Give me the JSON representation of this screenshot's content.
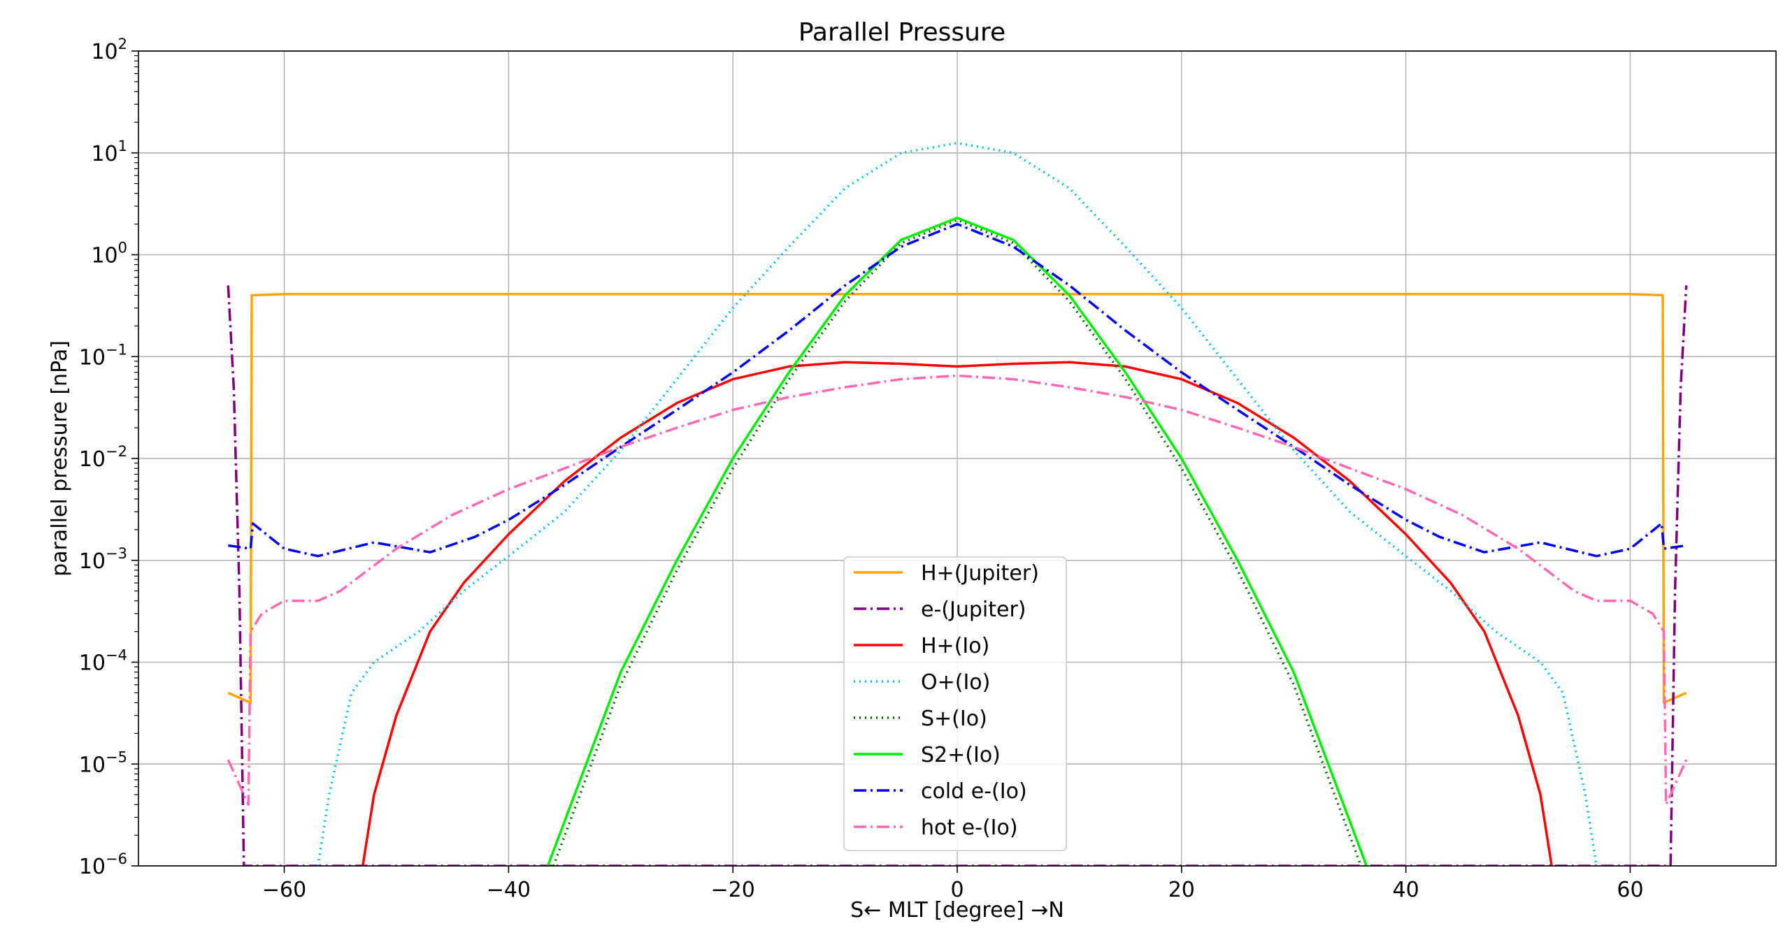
{
  "chart_data": {
    "type": "line",
    "title": "Parallel Pressure",
    "xlabel": "S← MLT [degree] →N",
    "ylabel": "parallel pressure [nPa]",
    "xlim": [
      -73,
      73
    ],
    "ylim": [
      1e-06,
      100
    ],
    "yscale": "log",
    "grid": true,
    "legend_position": "lower center",
    "x_ticks": [
      -60,
      -40,
      -20,
      0,
      20,
      40,
      60
    ],
    "x_tick_labels": [
      "−60",
      "−40",
      "−20",
      "0",
      "20",
      "40",
      "60"
    ],
    "y_ticks": [
      {
        "value": 1e-06,
        "base": "10",
        "exp": "−6"
      },
      {
        "value": 1e-05,
        "base": "10",
        "exp": "−5"
      },
      {
        "value": 0.0001,
        "base": "10",
        "exp": "−4"
      },
      {
        "value": 0.001,
        "base": "10",
        "exp": "−3"
      },
      {
        "value": 0.01,
        "base": "10",
        "exp": "−2"
      },
      {
        "value": 0.1,
        "base": "10",
        "exp": "−1"
      },
      {
        "value": 1,
        "base": "10",
        "exp": "0"
      },
      {
        "value": 10,
        "base": "10",
        "exp": "1"
      },
      {
        "value": 100,
        "base": "10",
        "exp": "2"
      }
    ],
    "series": [
      {
        "name": "H+(Jupiter)",
        "color": "#FFA500",
        "dash": "solid",
        "points": [
          [
            -65,
            5e-05
          ],
          [
            -63,
            4e-05
          ],
          [
            -62.9,
            0.4
          ],
          [
            -60,
            0.41
          ],
          [
            -40,
            0.41
          ],
          [
            0,
            0.41
          ],
          [
            40,
            0.41
          ],
          [
            60,
            0.41
          ],
          [
            62.9,
            0.4
          ],
          [
            63,
            4e-05
          ],
          [
            65,
            5e-05
          ]
        ]
      },
      {
        "name": "e-(Jupiter)",
        "color": "#800080",
        "dash": "dashdot",
        "points": [
          [
            -65,
            0.5
          ],
          [
            -64.5,
            0.05
          ],
          [
            -64,
            0.0005
          ],
          [
            -63.6,
            1e-06
          ],
          [
            63.6,
            1e-06
          ],
          [
            64,
            0.0005
          ],
          [
            64.5,
            0.05
          ],
          [
            65,
            0.5
          ]
        ]
      },
      {
        "name": "H+(Io)",
        "color": "#FF0000",
        "dash": "solid",
        "points": [
          [
            -53,
            1e-06
          ],
          [
            -52,
            5e-06
          ],
          [
            -50,
            3e-05
          ],
          [
            -47,
            0.0002
          ],
          [
            -44,
            0.0006
          ],
          [
            -40,
            0.0018
          ],
          [
            -35,
            0.006
          ],
          [
            -30,
            0.016
          ],
          [
            -25,
            0.035
          ],
          [
            -20,
            0.06
          ],
          [
            -15,
            0.08
          ],
          [
            -10,
            0.088
          ],
          [
            -5,
            0.085
          ],
          [
            0,
            0.08
          ],
          [
            5,
            0.085
          ],
          [
            10,
            0.088
          ],
          [
            15,
            0.08
          ],
          [
            20,
            0.06
          ],
          [
            25,
            0.035
          ],
          [
            30,
            0.016
          ],
          [
            35,
            0.006
          ],
          [
            40,
            0.0018
          ],
          [
            44,
            0.0006
          ],
          [
            47,
            0.0002
          ],
          [
            50,
            3e-05
          ],
          [
            52,
            5e-06
          ],
          [
            53,
            1e-06
          ]
        ]
      },
      {
        "name": "O+(Io)",
        "color": "#00BFEF",
        "dash": "dotted",
        "points": [
          [
            -57,
            1e-06
          ],
          [
            -56,
            5e-06
          ],
          [
            -54,
            5e-05
          ],
          [
            -52,
            0.0001
          ],
          [
            -48,
            0.0002
          ],
          [
            -44,
            0.0005
          ],
          [
            -40,
            0.0011
          ],
          [
            -35,
            0.003
          ],
          [
            -30,
            0.012
          ],
          [
            -25,
            0.06
          ],
          [
            -20,
            0.3
          ],
          [
            -15,
            1.2
          ],
          [
            -10,
            4.5
          ],
          [
            -5,
            10
          ],
          [
            0,
            12.5
          ],
          [
            5,
            10
          ],
          [
            10,
            4.5
          ],
          [
            15,
            1.2
          ],
          [
            20,
            0.3
          ],
          [
            25,
            0.06
          ],
          [
            30,
            0.012
          ],
          [
            35,
            0.003
          ],
          [
            40,
            0.0011
          ],
          [
            44,
            0.0005
          ],
          [
            48,
            0.0002
          ],
          [
            52,
            0.0001
          ],
          [
            54,
            5e-05
          ],
          [
            56,
            5e-06
          ],
          [
            57,
            1e-06
          ]
        ]
      },
      {
        "name": "S+(Io)",
        "color": "#006400",
        "dash": "dotted",
        "points": [
          [
            -36,
            1e-06
          ],
          [
            -30,
            6e-05
          ],
          [
            -25,
            0.0008
          ],
          [
            -20,
            0.008
          ],
          [
            -15,
            0.06
          ],
          [
            -10,
            0.35
          ],
          [
            -5,
            1.3
          ],
          [
            0,
            2.2
          ],
          [
            5,
            1.3
          ],
          [
            10,
            0.35
          ],
          [
            15,
            0.06
          ],
          [
            20,
            0.008
          ],
          [
            25,
            0.0008
          ],
          [
            30,
            6e-05
          ],
          [
            36,
            1e-06
          ]
        ]
      },
      {
        "name": "S2+(Io)",
        "color": "#00EE00",
        "dash": "solid",
        "points": [
          [
            -36.5,
            1e-06
          ],
          [
            -30,
            8e-05
          ],
          [
            -25,
            0.001
          ],
          [
            -20,
            0.01
          ],
          [
            -15,
            0.07
          ],
          [
            -10,
            0.4
          ],
          [
            -5,
            1.4
          ],
          [
            0,
            2.3
          ],
          [
            5,
            1.4
          ],
          [
            10,
            0.4
          ],
          [
            15,
            0.07
          ],
          [
            20,
            0.01
          ],
          [
            25,
            0.001
          ],
          [
            30,
            8e-05
          ],
          [
            36.5,
            1e-06
          ]
        ]
      },
      {
        "name": "cold e-(Io)",
        "color": "#0000EE",
        "dash": "dashdot",
        "points": [
          [
            -65,
            0.0014
          ],
          [
            -63,
            0.0013
          ],
          [
            -62.8,
            0.0023
          ],
          [
            -60,
            0.0013
          ],
          [
            -57,
            0.0011
          ],
          [
            -52,
            0.0015
          ],
          [
            -47,
            0.0012
          ],
          [
            -43,
            0.0017
          ],
          [
            -40,
            0.0025
          ],
          [
            -35,
            0.0055
          ],
          [
            -30,
            0.013
          ],
          [
            -25,
            0.03
          ],
          [
            -20,
            0.07
          ],
          [
            -15,
            0.18
          ],
          [
            -10,
            0.5
          ],
          [
            -5,
            1.2
          ],
          [
            0,
            2.0
          ],
          [
            5,
            1.2
          ],
          [
            10,
            0.5
          ],
          [
            15,
            0.18
          ],
          [
            20,
            0.07
          ],
          [
            25,
            0.03
          ],
          [
            30,
            0.013
          ],
          [
            35,
            0.0055
          ],
          [
            40,
            0.0025
          ],
          [
            43,
            0.0017
          ],
          [
            47,
            0.0012
          ],
          [
            52,
            0.0015
          ],
          [
            57,
            0.0011
          ],
          [
            60,
            0.0013
          ],
          [
            62.8,
            0.0023
          ],
          [
            63,
            0.0013
          ],
          [
            65,
            0.0014
          ]
        ]
      },
      {
        "name": "hot e-(Io)",
        "color": "#FF69B4",
        "dash": "dashdot",
        "points": [
          [
            -65,
            1.1e-05
          ],
          [
            -63.2,
            4e-06
          ],
          [
            -63,
            0.0002
          ],
          [
            -62,
            0.0003
          ],
          [
            -60,
            0.0004
          ],
          [
            -57,
            0.0004
          ],
          [
            -55,
            0.0005
          ],
          [
            -50,
            0.0013
          ],
          [
            -45,
            0.0028
          ],
          [
            -40,
            0.005
          ],
          [
            -35,
            0.008
          ],
          [
            -30,
            0.013
          ],
          [
            -25,
            0.02
          ],
          [
            -20,
            0.03
          ],
          [
            -15,
            0.04
          ],
          [
            -10,
            0.05
          ],
          [
            -5,
            0.06
          ],
          [
            0,
            0.065
          ],
          [
            5,
            0.06
          ],
          [
            10,
            0.05
          ],
          [
            15,
            0.04
          ],
          [
            20,
            0.03
          ],
          [
            25,
            0.02
          ],
          [
            30,
            0.013
          ],
          [
            35,
            0.008
          ],
          [
            40,
            0.005
          ],
          [
            45,
            0.0028
          ],
          [
            50,
            0.0013
          ],
          [
            55,
            0.0005
          ],
          [
            57,
            0.0004
          ],
          [
            60,
            0.0004
          ],
          [
            62,
            0.0003
          ],
          [
            63,
            0.0002
          ],
          [
            63.2,
            4e-06
          ],
          [
            65,
            1.1e-05
          ]
        ]
      }
    ]
  }
}
